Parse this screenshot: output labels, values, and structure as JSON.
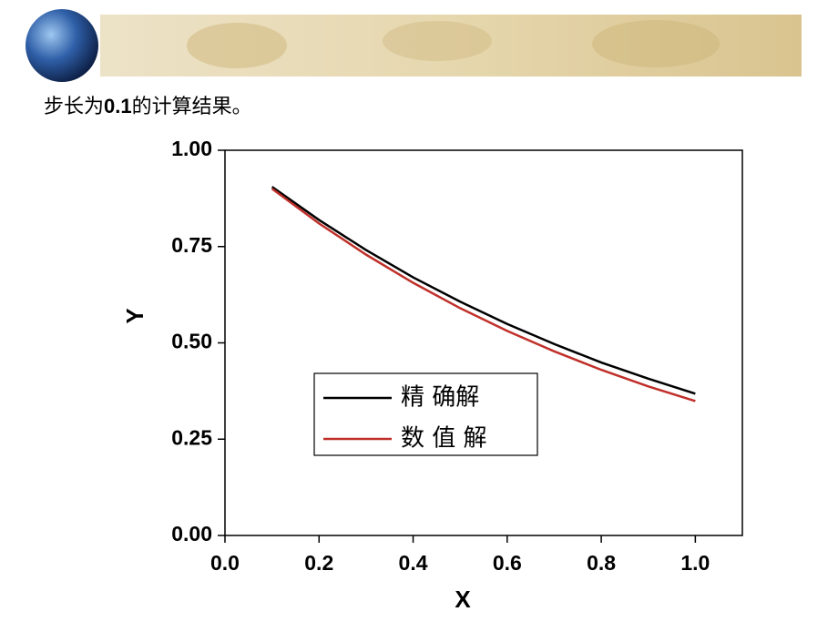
{
  "heading": {
    "parts": [
      "步长为",
      "0.1",
      "的计算结果。"
    ]
  },
  "chart_data": {
    "type": "line",
    "x_label": "X",
    "y_label": "Y",
    "x": [
      0.1,
      0.2,
      0.3,
      0.4,
      0.5,
      0.6,
      0.7,
      0.8,
      0.9,
      1.0
    ],
    "series": [
      {
        "name": "精 确解",
        "color": "#000000",
        "values": [
          0.905,
          0.819,
          0.741,
          0.67,
          0.607,
          0.549,
          0.497,
          0.449,
          0.407,
          0.368
        ]
      },
      {
        "name": "数 值 解",
        "color": "#c0302a",
        "values": [
          0.9,
          0.81,
          0.729,
          0.656,
          0.59,
          0.531,
          0.478,
          0.43,
          0.387,
          0.349
        ]
      }
    ],
    "xlim": [
      0,
      1.1
    ],
    "ylim": [
      0,
      1
    ],
    "xticks": [
      {
        "value": 0,
        "label": "0.0"
      },
      {
        "value": 0.2,
        "label": "0.2"
      },
      {
        "value": 0.4,
        "label": "0.4"
      },
      {
        "value": 0.6,
        "label": "0.6"
      },
      {
        "value": 0.8,
        "label": "0.8"
      },
      {
        "value": 1.0,
        "label": "1.0"
      }
    ],
    "yticks": [
      {
        "value": 0,
        "label": "0.00"
      },
      {
        "value": 0.25,
        "label": "0.25"
      },
      {
        "value": 0.5,
        "label": "0.50"
      },
      {
        "value": 0.75,
        "label": "0.75"
      },
      {
        "value": 1.0,
        "label": "1.00"
      }
    ],
    "grid": false
  }
}
